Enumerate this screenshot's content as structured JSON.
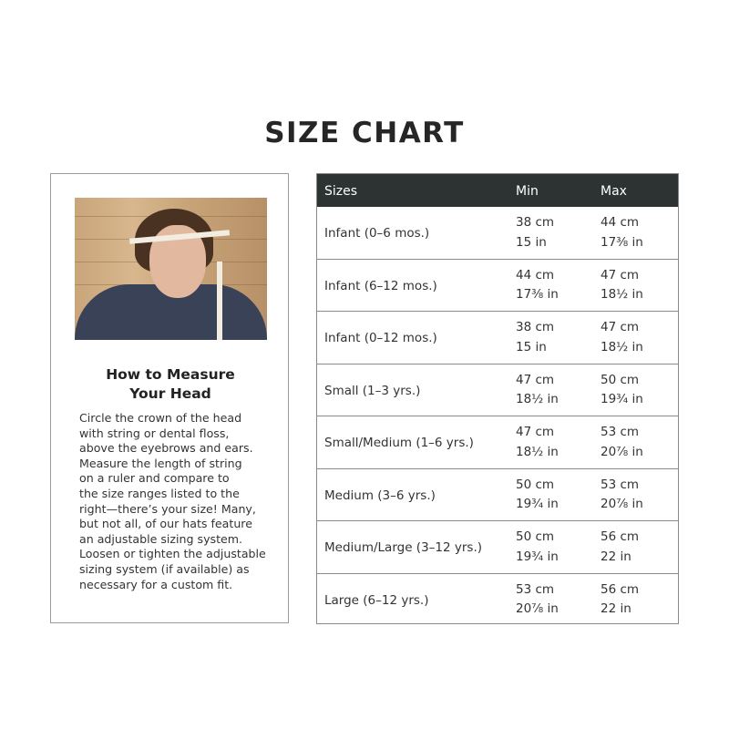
{
  "title": "SIZE CHART",
  "howto": {
    "heading": "How to Measure\nYour Head",
    "body": "Circle the crown of the head\nwith string or dental floss,\nabove the eyebrows and ears.\nMeasure the length of string\non a ruler and compare to\nthe size ranges listed to the\nright—there’s your size! Many,\nbut not all, of our hats feature\nan adjustable sizing system.\nLoosen or tighten the adjustable\nsizing system (if available) as\nnecessary for a custom fit."
  },
  "table": {
    "headers": [
      "Sizes",
      "Min",
      "Max"
    ],
    "rows": [
      {
        "size": "Infant (0–6 mos.)",
        "min_cm": "38 cm",
        "min_in": "15 in",
        "max_cm": "44 cm",
        "max_in": "17⅜ in"
      },
      {
        "size": "Infant (6–12 mos.)",
        "min_cm": "44 cm",
        "min_in": "17⅜ in",
        "max_cm": "47 cm",
        "max_in": "18½ in"
      },
      {
        "size": "Infant (0–12 mos.)",
        "min_cm": "38 cm",
        "min_in": "15 in",
        "max_cm": "47 cm",
        "max_in": "18½ in"
      },
      {
        "size": "Small (1–3 yrs.)",
        "min_cm": "47 cm",
        "min_in": "18½ in",
        "max_cm": "50 cm",
        "max_in": "19¾ in"
      },
      {
        "size": "Small/Medium (1–6 yrs.)",
        "min_cm": "47 cm",
        "min_in": "18½ in",
        "max_cm": "53 cm",
        "max_in": "20⅞ in"
      },
      {
        "size": "Medium (3–6 yrs.)",
        "min_cm": "50 cm",
        "min_in": "19¾ in",
        "max_cm": "53 cm",
        "max_in": "20⅞ in"
      },
      {
        "size": "Medium/Large (3–12 yrs.)",
        "min_cm": "50 cm",
        "min_in": "19¾ in",
        "max_cm": "56 cm",
        "max_in": "22 in"
      },
      {
        "size": "Large (6–12 yrs.)",
        "min_cm": "53 cm",
        "min_in": "20⅞ in",
        "max_cm": "56 cm",
        "max_in": "22 in"
      }
    ]
  },
  "colors": {
    "header_bg": "#2d3232",
    "title": "#262626"
  }
}
